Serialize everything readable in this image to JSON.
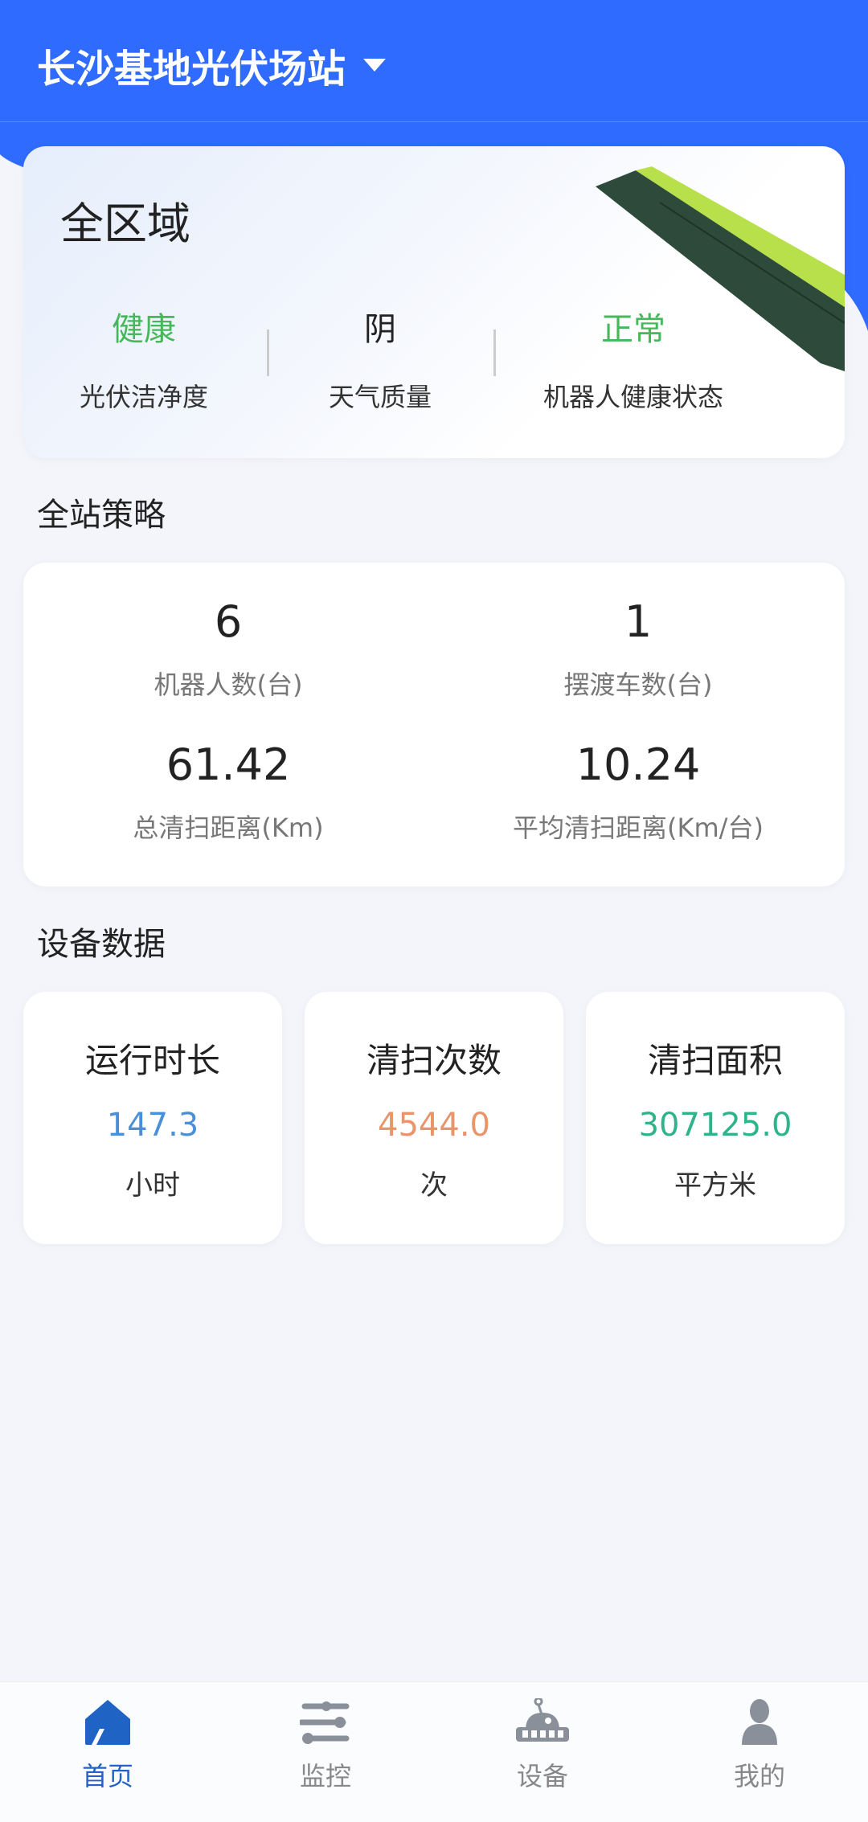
{
  "header": {
    "title": "长沙基地光伏场站"
  },
  "overview": {
    "title": "全区域",
    "stats": [
      {
        "value": "健康",
        "label": "光伏洁净度"
      },
      {
        "value": "阴",
        "label": "天气质量"
      },
      {
        "value": "正常",
        "label": "机器人健康状态"
      }
    ]
  },
  "strategy": {
    "title": "全站策略",
    "cells": [
      {
        "value": "6",
        "label": "机器人数(台)"
      },
      {
        "value": "1",
        "label": "摆渡车数(台)"
      },
      {
        "value": "61.42",
        "label": "总清扫距离(Km)"
      },
      {
        "value": "10.24",
        "label": "平均清扫距离(Km/台)"
      }
    ]
  },
  "device": {
    "title": "设备数据",
    "cards": [
      {
        "title": "运行时长",
        "value": "147.3",
        "unit": "小时",
        "color": "#4a90d9"
      },
      {
        "title": "清扫次数",
        "value": "4544.0",
        "unit": "次",
        "color": "#e8956a"
      },
      {
        "title": "清扫面积",
        "value": "307125.0",
        "unit": "平方米",
        "color": "#2fb38a"
      }
    ]
  },
  "nav": {
    "items": [
      {
        "label": "首页",
        "icon": "home-icon",
        "active": true
      },
      {
        "label": "监控",
        "icon": "sliders-icon"
      },
      {
        "label": "设备",
        "icon": "robot-icon"
      },
      {
        "label": "我的",
        "icon": "user-icon"
      }
    ]
  },
  "colors": {
    "primary": "#2f6bff",
    "healthy": "#47b85a"
  }
}
